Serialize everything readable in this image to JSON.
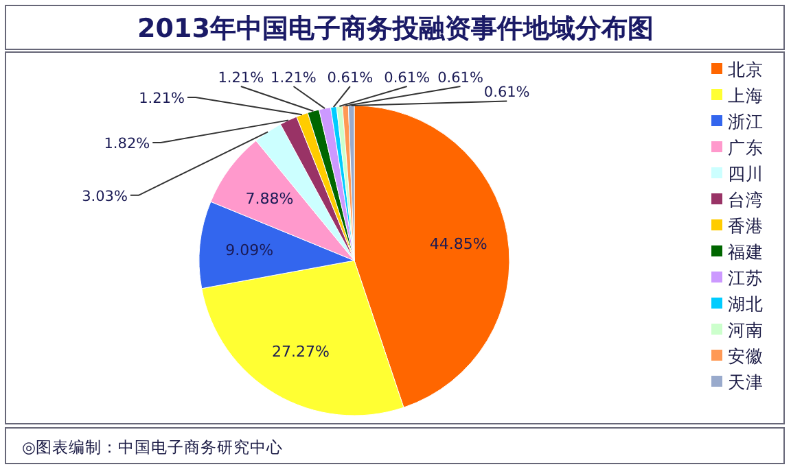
{
  "chart_data": {
    "type": "pie",
    "title": "2013年中国电子商务投融资事件地域分布图",
    "categories": [
      "北京",
      "上海",
      "浙江",
      "广东",
      "四川",
      "台湾",
      "香港",
      "福建",
      "江苏",
      "湖北",
      "河南",
      "安徽",
      "天津"
    ],
    "values": [
      44.85,
      27.27,
      9.09,
      7.88,
      3.03,
      1.82,
      1.21,
      1.21,
      1.21,
      0.61,
      0.61,
      0.61,
      0.61
    ],
    "colors": [
      "#ff6600",
      "#ffff33",
      "#3366ee",
      "#ff99cc",
      "#ccffff",
      "#993366",
      "#ffcc00",
      "#006600",
      "#cc99ff",
      "#00ccff",
      "#ccffcc",
      "#ff9955",
      "#99aacc"
    ],
    "value_labels": [
      "44.85%",
      "27.27%",
      "9.09%",
      "7.88%",
      "3.03%",
      "1.82%",
      "1.21%",
      "1.21%",
      "1.21%",
      "0.61%",
      "0.61%",
      "0.61%",
      "0.61%"
    ],
    "legend": "right",
    "annotations": [
      "◎图表编制：中国电子商务研究中心"
    ]
  }
}
